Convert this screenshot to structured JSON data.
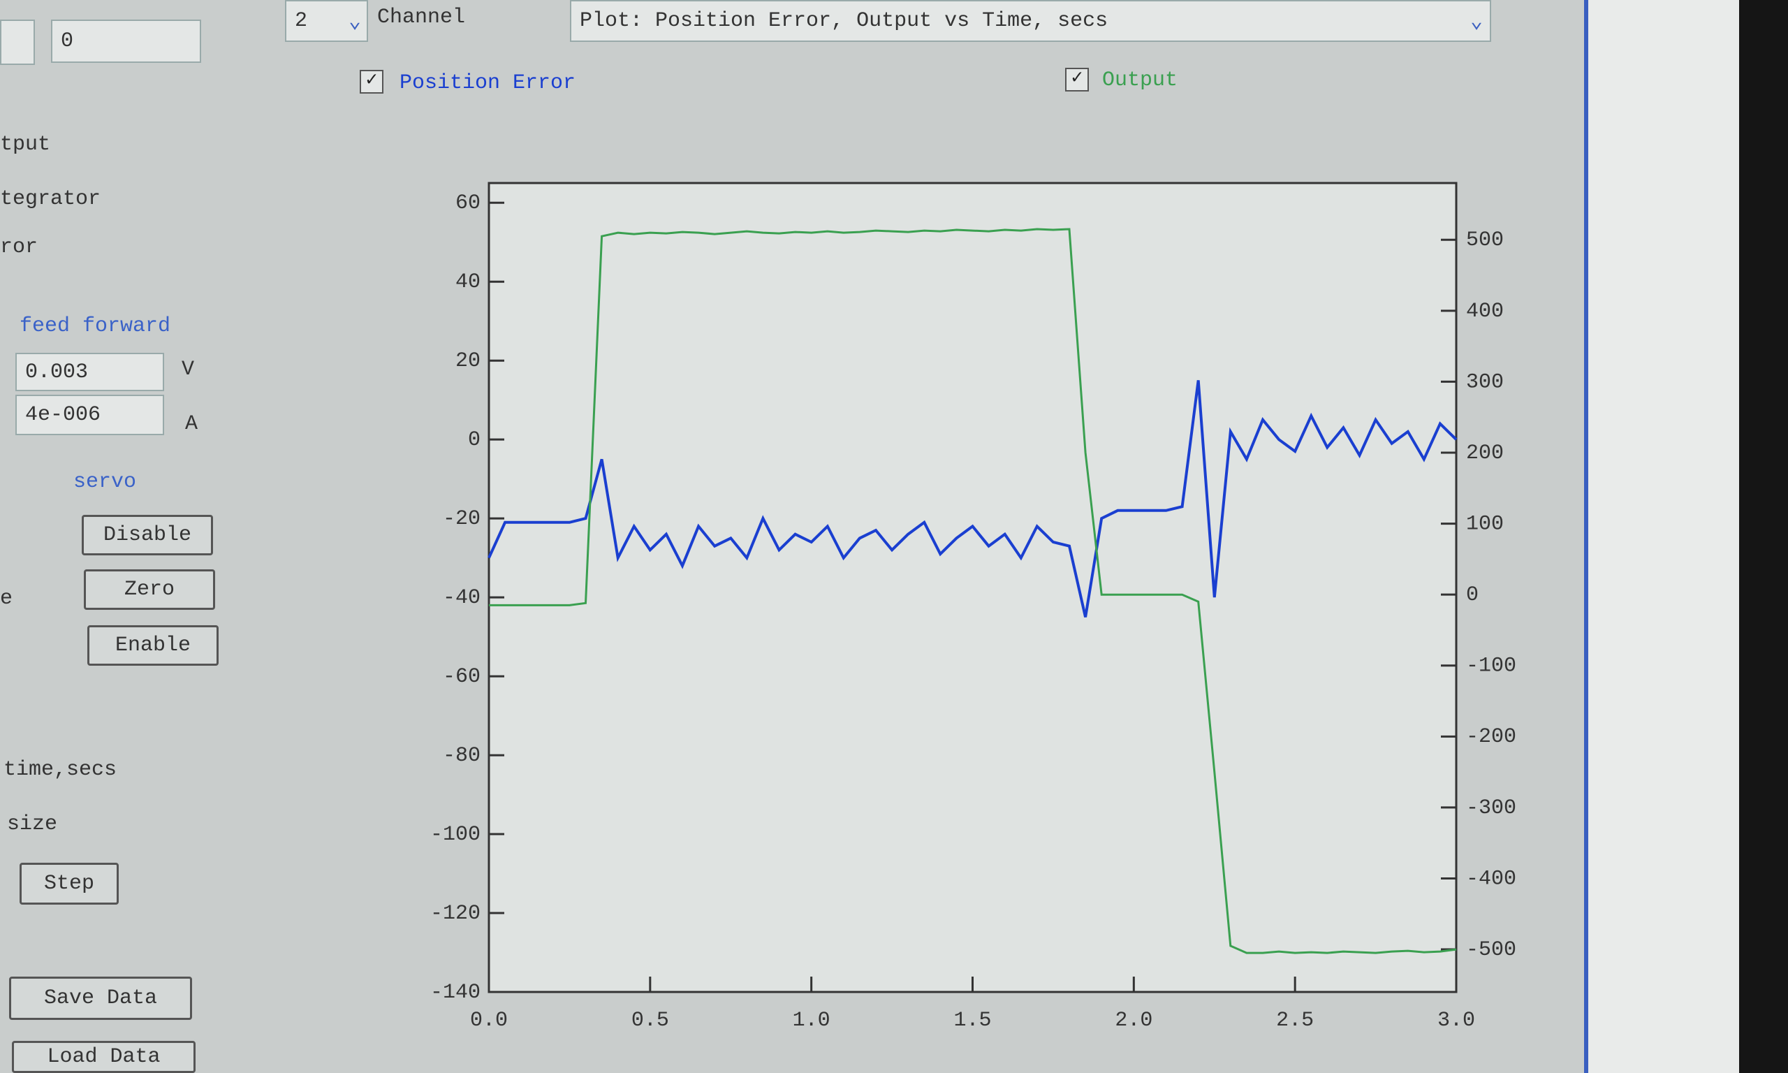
{
  "controls": {
    "left_input": "0",
    "channel_select": "2",
    "channel_label": "Channel",
    "plot_select": "Plot: Position Error, Output vs Time, secs",
    "panel_labels": [
      "tput",
      "tegrator",
      "ror"
    ],
    "feed_forward_label": "feed forward",
    "ff_v_value": "0.003",
    "ff_v_unit": "V",
    "ff_a_value": "4e-006",
    "ff_a_unit": "A",
    "servo_label": "servo",
    "disable_button": "Disable",
    "zero_button": "Zero",
    "enable_button": "Enable",
    "side_label": "e",
    "time_label": "time,secs",
    "size_label": "size",
    "step_button": "Step",
    "save_button": "Save Data",
    "load_button": "Load Data"
  },
  "chart_data": {
    "type": "line",
    "x": [
      0,
      0.05,
      0.1,
      0.15,
      0.2,
      0.25,
      0.3,
      0.35,
      0.4,
      0.45,
      0.5,
      0.55,
      0.6,
      0.65,
      0.7,
      0.75,
      0.8,
      0.85,
      0.9,
      0.95,
      1.0,
      1.05,
      1.1,
      1.15,
      1.2,
      1.25,
      1.3,
      1.35,
      1.4,
      1.45,
      1.5,
      1.55,
      1.6,
      1.65,
      1.7,
      1.75,
      1.8,
      1.85,
      1.9,
      1.95,
      2.0,
      2.05,
      2.1,
      2.15,
      2.2,
      2.25,
      2.3,
      2.35,
      2.4,
      2.45,
      2.5,
      2.55,
      2.6,
      2.65,
      2.7,
      2.75,
      2.8,
      2.85,
      2.9,
      2.95,
      3.0
    ],
    "series": [
      {
        "name": "Position Error",
        "color": "#1a3fd0",
        "values": [
          -30,
          -21,
          -21,
          -21,
          -21,
          -21,
          -20,
          -5,
          -30,
          -22,
          -28,
          -24,
          -32,
          -22,
          -27,
          -25,
          -30,
          -20,
          -28,
          -24,
          -26,
          -22,
          -30,
          -25,
          -23,
          -28,
          -24,
          -21,
          -29,
          -25,
          -22,
          -27,
          -24,
          -30,
          -22,
          -26,
          -27,
          -45,
          -20,
          -18,
          -18,
          -18,
          -18,
          -17,
          15,
          -40,
          2,
          -5,
          5,
          0,
          -3,
          6,
          -2,
          3,
          -4,
          5,
          -1,
          2,
          -5,
          4,
          0
        ]
      },
      {
        "name": "Output",
        "color": "#3aa050",
        "axis": "y2",
        "values": [
          -15,
          -15,
          -15,
          -15,
          -15,
          -15,
          -12,
          505,
          510,
          508,
          510,
          509,
          511,
          510,
          508,
          510,
          512,
          510,
          509,
          511,
          510,
          512,
          510,
          511,
          513,
          512,
          511,
          513,
          512,
          514,
          513,
          512,
          514,
          513,
          515,
          514,
          515,
          200,
          0,
          0,
          0,
          0,
          0,
          0,
          -10,
          -250,
          -495,
          -505,
          -505,
          -503,
          -505,
          -504,
          -505,
          -503,
          -504,
          -505,
          -503,
          -502,
          -504,
          -503,
          -500
        ]
      }
    ],
    "xlim": [
      0,
      3
    ],
    "xticks": [
      {
        "value": 0,
        "label": "0.0"
      },
      0.5,
      {
        "value": 1,
        "label": "1.0"
      },
      1.5,
      {
        "value": 2,
        "label": "2.0"
      },
      2.5,
      {
        "value": 3,
        "label": "3.0"
      }
    ],
    "ylim": [
      -140,
      65
    ],
    "yticks": [
      -140,
      -120,
      -100,
      -80,
      -60,
      -40,
      -20,
      0,
      20,
      40,
      60
    ],
    "y2lim": [
      -560,
      580
    ],
    "y2ticks": [
      -500,
      -400,
      -300,
      -200,
      -100,
      0,
      100,
      200,
      300,
      400,
      500
    ]
  }
}
